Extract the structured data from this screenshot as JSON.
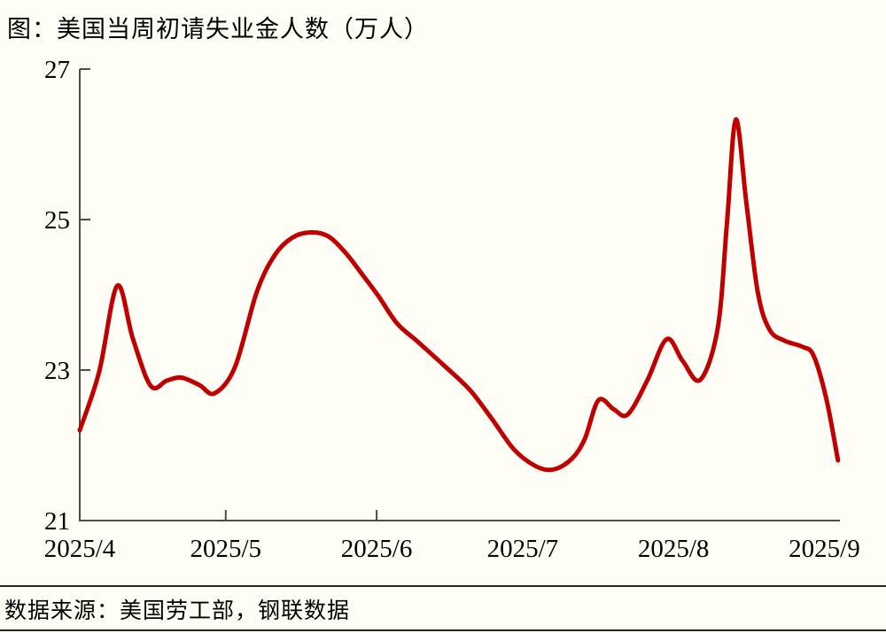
{
  "title": "图：美国当周初请失业金人数（万人）",
  "source": "数据来源：美国劳工部，钢联数据",
  "chart_data": {
    "type": "line",
    "title": "美国当周初请失业金人数（万人）",
    "series_name": "初请失业金人数",
    "line_color": "#C00000",
    "axis_color": "#4d4d4d",
    "background_color": "#fffef6",
    "grid": "off",
    "legend": "none",
    "ylabel": "",
    "xlabel": "",
    "y_axis": {
      "range": [
        21,
        27
      ],
      "ticks": [
        21,
        23,
        25,
        27
      ]
    },
    "x_axis": {
      "unit": "days since 2025-04-01",
      "range": [
        0,
        156.2
      ],
      "tick_labels": [
        {
          "label": "2025/4",
          "day": 0
        },
        {
          "label": "2025/5",
          "day": 30
        },
        {
          "label": "2025/6",
          "day": 61
        },
        {
          "label": "2025/7",
          "day": 91
        },
        {
          "label": "2025/8",
          "day": 122
        },
        {
          "label": "2025/9",
          "day": 153
        }
      ],
      "tick_marks_days": [
        30,
        61
      ]
    },
    "points": [
      [
        0,
        22.2
      ],
      [
        4,
        22.98
      ],
      [
        7.7,
        24.12
      ],
      [
        10.9,
        23.42
      ],
      [
        14.6,
        22.79
      ],
      [
        17.9,
        22.86
      ],
      [
        20.9,
        22.9
      ],
      [
        24.6,
        22.8
      ],
      [
        27.7,
        22.69
      ],
      [
        31.9,
        23.04
      ],
      [
        36.4,
        24.04
      ],
      [
        40.1,
        24.53
      ],
      [
        43.7,
        24.76
      ],
      [
        47.4,
        24.83
      ],
      [
        51,
        24.78
      ],
      [
        54.6,
        24.56
      ],
      [
        58.3,
        24.25
      ],
      [
        61.4,
        23.98
      ],
      [
        65.2,
        23.62
      ],
      [
        69.2,
        23.39
      ],
      [
        74.7,
        23.07
      ],
      [
        80.1,
        22.74
      ],
      [
        84.7,
        22.35
      ],
      [
        89.3,
        21.94
      ],
      [
        93.8,
        21.72
      ],
      [
        97.4,
        21.68
      ],
      [
        101.1,
        21.82
      ],
      [
        103.8,
        22.09
      ],
      [
        106.6,
        22.6
      ],
      [
        109.7,
        22.48
      ],
      [
        112.6,
        22.41
      ],
      [
        116.6,
        22.86
      ],
      [
        120.6,
        23.41
      ],
      [
        123.9,
        23.12
      ],
      [
        127.5,
        22.87
      ],
      [
        131.1,
        23.56
      ],
      [
        133,
        24.97
      ],
      [
        134.8,
        26.33
      ],
      [
        137,
        25.21
      ],
      [
        139.3,
        24.04
      ],
      [
        141.7,
        23.54
      ],
      [
        144.8,
        23.39
      ],
      [
        148.5,
        23.31
      ],
      [
        150.8,
        23.19
      ],
      [
        153.4,
        22.62
      ],
      [
        155.8,
        21.8
      ]
    ]
  }
}
